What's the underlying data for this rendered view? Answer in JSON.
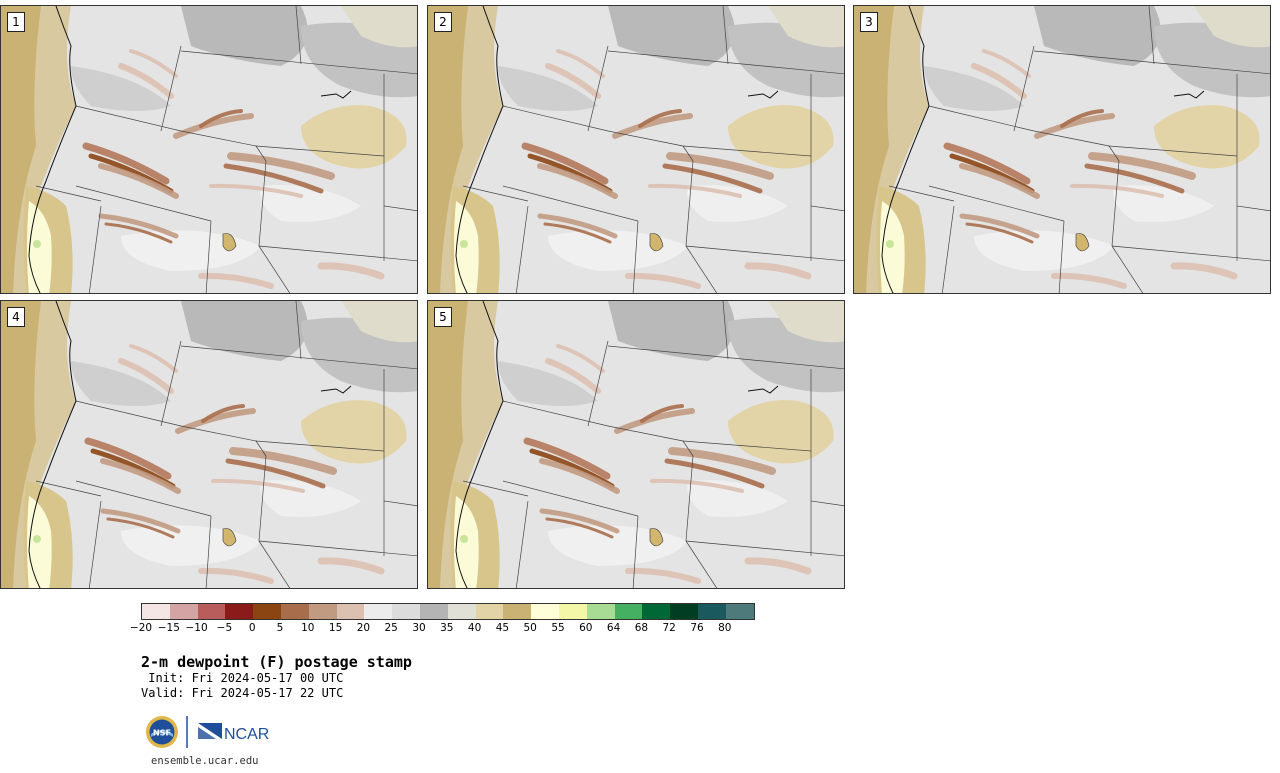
{
  "panels": [
    {
      "label": "1"
    },
    {
      "label": "2"
    },
    {
      "label": "3"
    },
    {
      "label": "4"
    },
    {
      "label": "5"
    }
  ],
  "colorbar": {
    "colors": [
      "#f5e6e6",
      "#d4a3a3",
      "#b85c5c",
      "#8b1a1a",
      "#8b4513",
      "#a86e4c",
      "#c19a82",
      "#dcc0b0",
      "#ececec",
      "#dcdcdc",
      "#b4b4b4",
      "#e0e0d6",
      "#e2d4a6",
      "#c9b274",
      "#fefed8",
      "#f4f7a8",
      "#a8db94",
      "#45b062",
      "#006837",
      "#003d22",
      "#1a5a5e",
      "#4e7a7c"
    ],
    "tick_labels": [
      "−20",
      "−15",
      "−10",
      "−5",
      "0",
      "5",
      "10",
      "15",
      "20",
      "25",
      "30",
      "35",
      "40",
      "45",
      "50",
      "55",
      "60",
      "64",
      "68",
      "72",
      "76",
      "80"
    ]
  },
  "title": "2-m dewpoint (F) postage stamp",
  "init": " Init: Fri 2024-05-17 00 UTC",
  "valid": "Valid: Fri 2024-05-17 22 UTC",
  "logos": {
    "nsf": "NSF",
    "ncar": "NCAR"
  },
  "url": "ensemble.ucar.edu"
}
